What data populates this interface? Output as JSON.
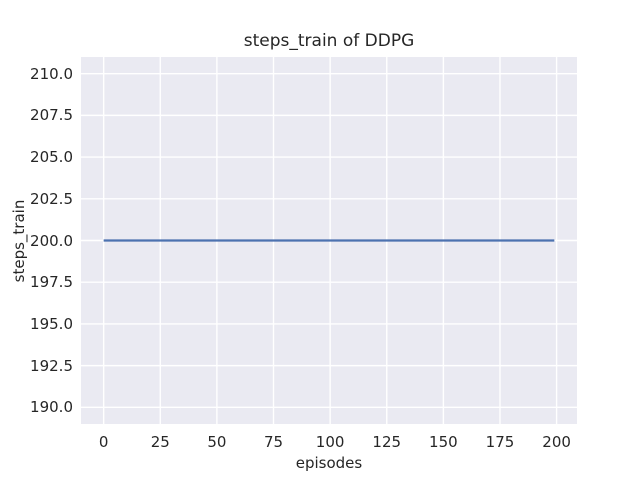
{
  "chart_data": {
    "type": "line",
    "title": "steps_train of DDPG",
    "xlabel": "episodes",
    "ylabel": "steps_train",
    "series": [
      {
        "name": "steps_train",
        "color": "#4c72b0",
        "x": [
          0,
          199
        ],
        "y": [
          200,
          200
        ],
        "note": "constant value 200 for all 200 training episodes"
      }
    ],
    "xlim": [
      -10,
      209
    ],
    "ylim": [
      189,
      211
    ],
    "xticks": {
      "values": [
        0,
        25,
        50,
        75,
        100,
        125,
        150,
        175,
        200
      ],
      "labels": [
        "0",
        "25",
        "50",
        "75",
        "100",
        "125",
        "150",
        "175",
        "200"
      ]
    },
    "yticks": {
      "values": [
        190,
        192.5,
        195,
        197.5,
        200,
        202.5,
        205,
        207.5,
        210
      ],
      "labels": [
        "190.0",
        "192.5",
        "195.0",
        "197.5",
        "200.0",
        "202.5",
        "205.0",
        "207.5",
        "210.0"
      ]
    },
    "grid": true,
    "legend": "none",
    "style": {
      "figure_bg": "#ffffff",
      "plot_bg": "#eaeaf2",
      "grid_color": "#ffffff",
      "text_color": "#262626",
      "line_width": 2.25,
      "grid_width": 1.4
    }
  }
}
